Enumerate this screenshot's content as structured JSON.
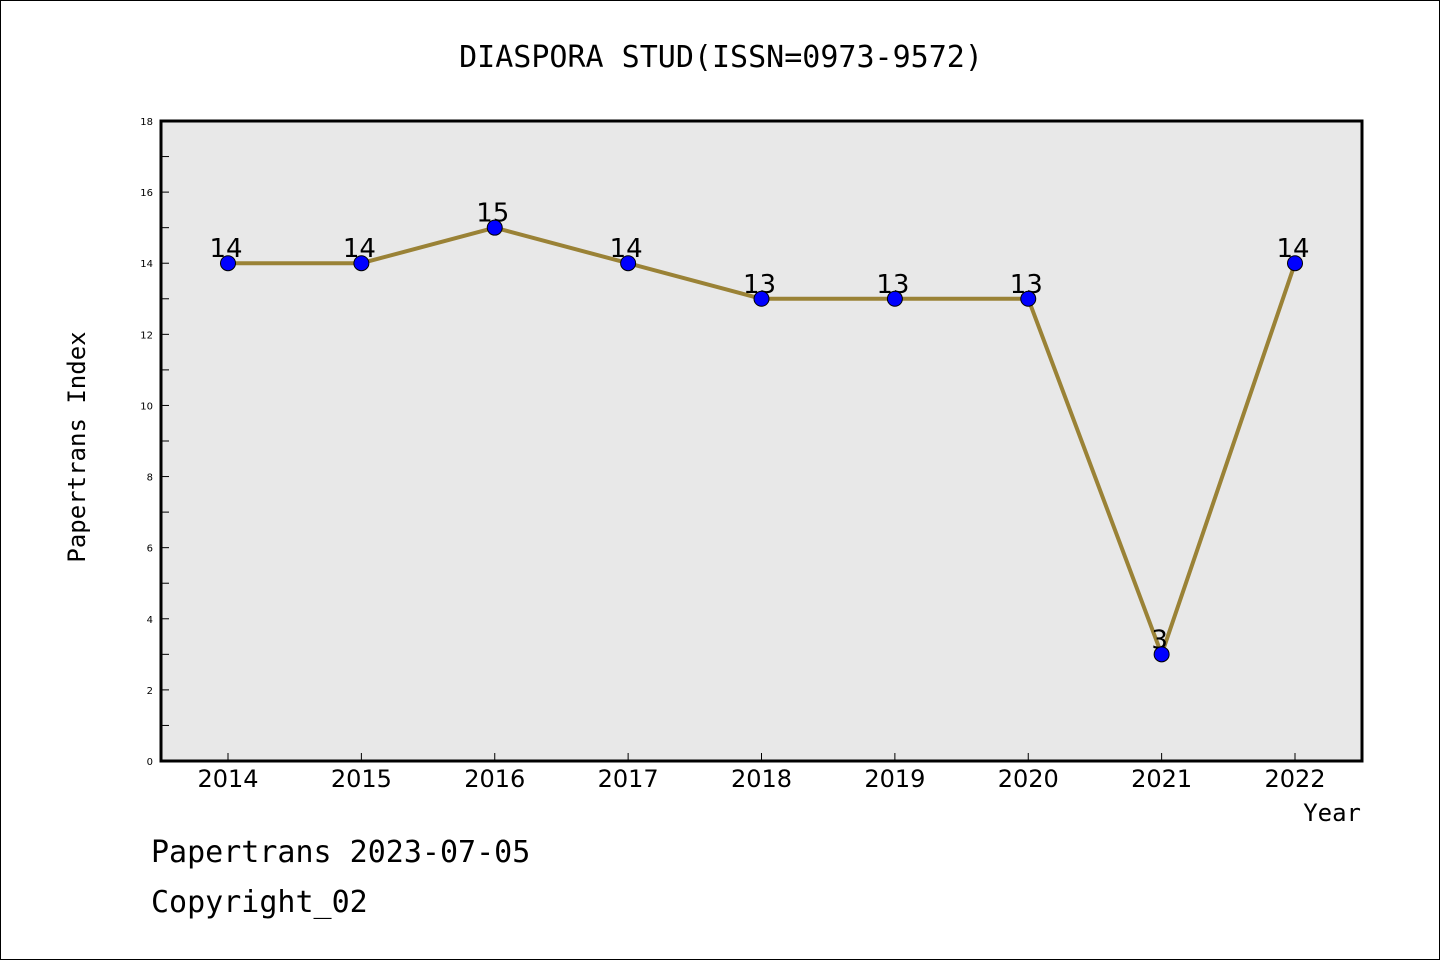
{
  "chart_data": {
    "type": "line",
    "title": "DIASPORA STUD(ISSN=0973-9572)",
    "xlabel": "Year",
    "ylabel": "Papertrans Index",
    "categories": [
      "2014",
      "2015",
      "2016",
      "2017",
      "2018",
      "2019",
      "2020",
      "2021",
      "2022"
    ],
    "series": [
      {
        "values": [
          14,
          14,
          15,
          14,
          13,
          13,
          13,
          3,
          14
        ]
      }
    ],
    "data_labels": [
      "14",
      "14",
      "15",
      "14",
      "13",
      "13",
      "13",
      "3",
      "14"
    ],
    "ylim": [
      0,
      18
    ],
    "y_ticks": [
      0,
      2,
      4,
      6,
      8,
      10,
      12,
      14,
      16,
      18
    ],
    "y_tick_labels": [
      "0",
      "2",
      "4",
      "6",
      "8",
      "10",
      "12",
      "14",
      "16",
      "18"
    ],
    "grid": false,
    "colors": {
      "plot_background": "#e8e8e8",
      "line": "#9a8236",
      "marker": "#0000ff"
    }
  },
  "footer": {
    "line1": "Papertrans 2023-07-05",
    "line2": "Copyright_02"
  }
}
